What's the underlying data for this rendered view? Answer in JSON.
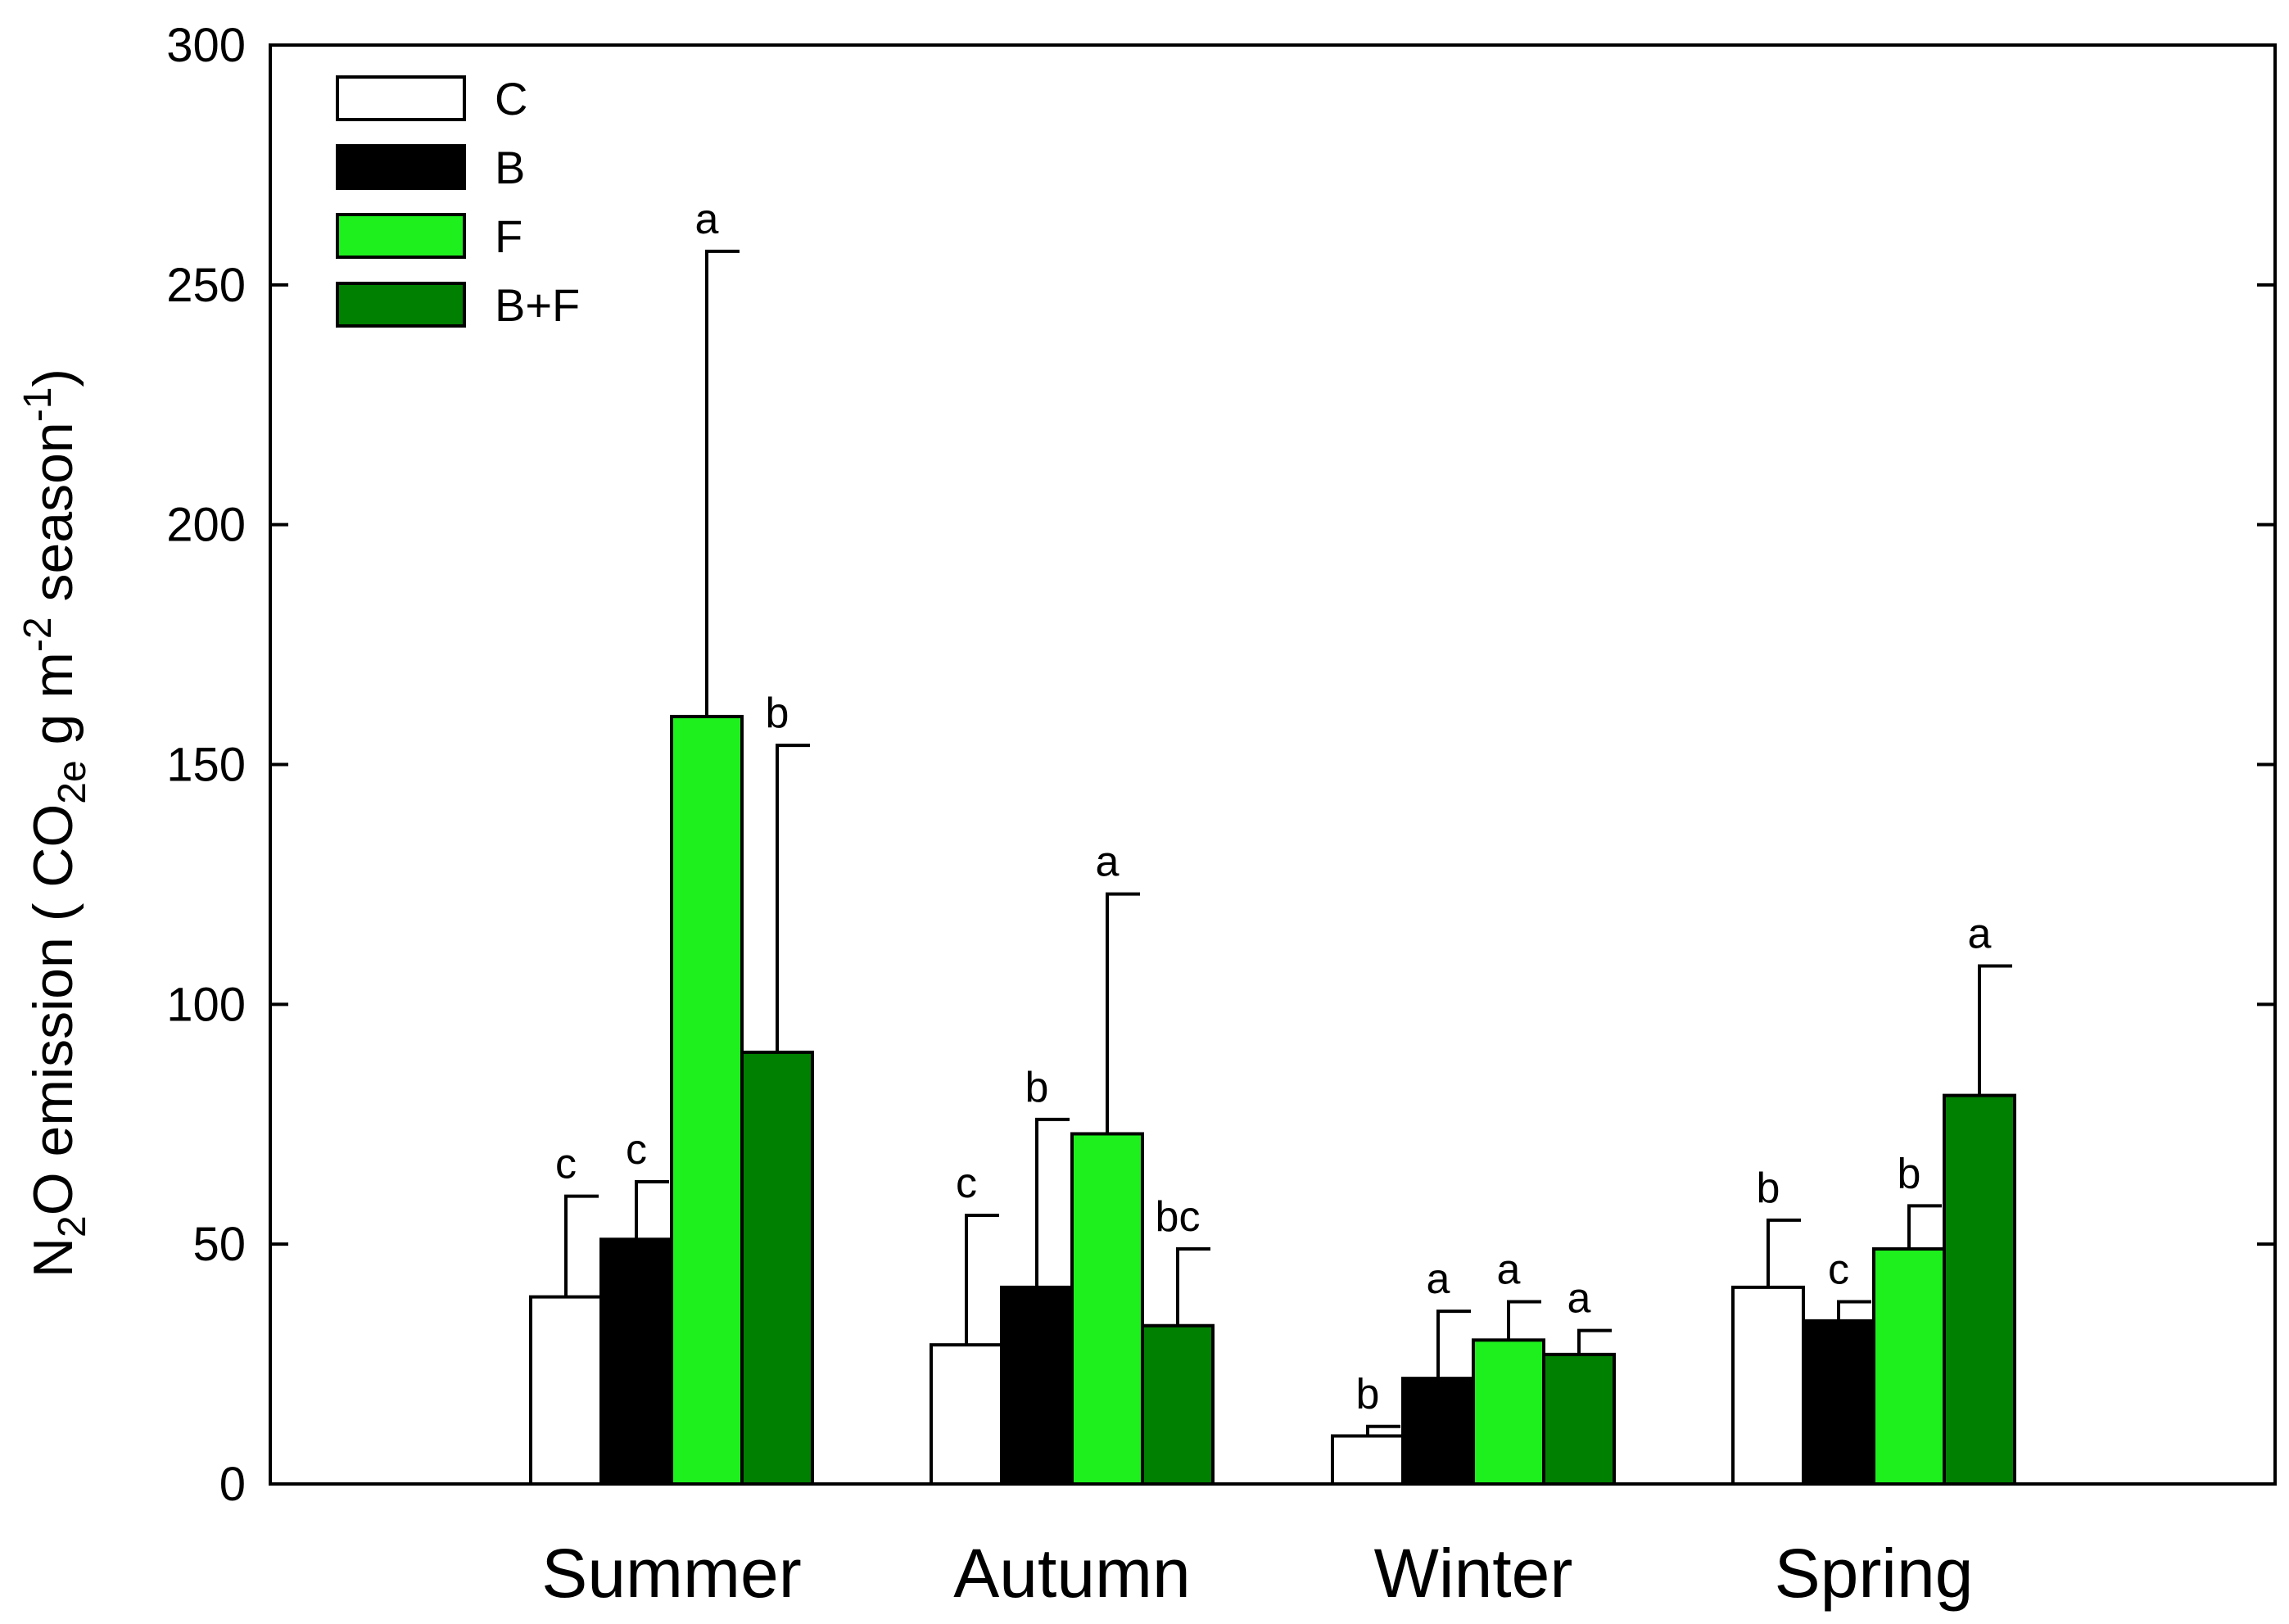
{
  "chart_data": {
    "type": "bar",
    "ylabel_parts": [
      "N",
      "2",
      "O emission ( CO",
      "2e",
      " g m",
      "-2",
      " season",
      "-1",
      ")"
    ],
    "ylim": [
      0,
      300
    ],
    "yticks": [
      0,
      50,
      100,
      150,
      200,
      250,
      300
    ],
    "categories": [
      "Summer",
      "Autumn",
      "Winter",
      "Spring"
    ],
    "series": [
      {
        "name": "C",
        "color": "#ffffff",
        "values": [
          39,
          29,
          10,
          41
        ],
        "errors": [
          21,
          27,
          2,
          14
        ],
        "letters": [
          "c",
          "c",
          "b",
          "b"
        ]
      },
      {
        "name": "B",
        "color": "#000000",
        "values": [
          51,
          41,
          22,
          34
        ],
        "errors": [
          12,
          35,
          14,
          4
        ],
        "letters": [
          "c",
          "b",
          "a",
          "c"
        ]
      },
      {
        "name": "F",
        "color": "#1ef01e",
        "values": [
          160,
          73,
          30,
          49
        ],
        "errors": [
          97,
          50,
          8,
          9
        ],
        "letters": [
          "a",
          "a",
          "a",
          "b"
        ]
      },
      {
        "name": "B+F",
        "color": "#008000",
        "values": [
          90,
          33,
          27,
          81
        ],
        "errors": [
          64,
          16,
          5,
          27
        ],
        "letters": [
          "b",
          "bc",
          "a",
          "a"
        ]
      }
    ]
  }
}
